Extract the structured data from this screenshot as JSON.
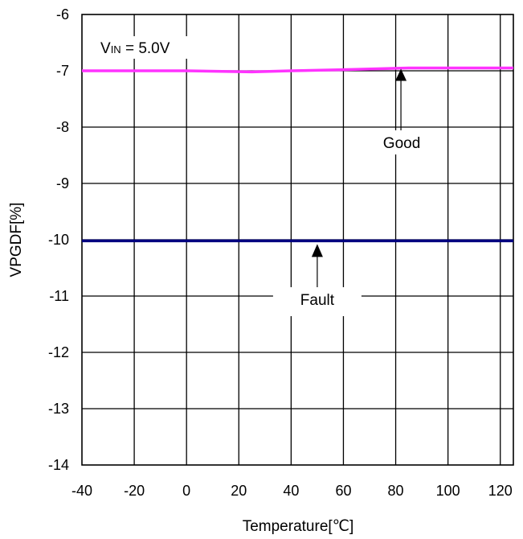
{
  "chart_data": {
    "type": "line",
    "title": "",
    "xlabel": "Temperature[℃]",
    "ylabel": "VPGDF[%]",
    "xlim": [
      -40,
      125
    ],
    "ylim": [
      -14,
      -6
    ],
    "xticks": [
      "-40",
      "-20",
      "0",
      "20",
      "40",
      "60",
      "80",
      "100",
      "120"
    ],
    "yticks": [
      "-6",
      "-7",
      "-8",
      "-9",
      "-10",
      "-11",
      "-12",
      "-13",
      "-14"
    ],
    "grid": true,
    "series": [
      {
        "name": "Good",
        "color": "#ff33ff",
        "x": [
          -40,
          -20,
          0,
          25,
          40,
          60,
          85,
          100,
          125
        ],
        "y": [
          -7.0,
          -7.0,
          -7.0,
          -7.02,
          -7.0,
          -6.98,
          -6.95,
          -6.95,
          -6.95
        ]
      },
      {
        "name": "Fault",
        "color": "#000080",
        "x": [
          -40,
          0,
          40,
          80,
          125
        ],
        "y": [
          -10.02,
          -10.02,
          -10.02,
          -10.02,
          -10.02
        ]
      }
    ],
    "annotations": {
      "condition_prefix": "V",
      "condition_sub": "IN",
      "condition_value": " = 5.0V",
      "good": {
        "text": "Good",
        "x": 82,
        "y": -6.95
      },
      "fault": {
        "text": "Fault",
        "x": 50,
        "y": -10.02
      }
    }
  }
}
